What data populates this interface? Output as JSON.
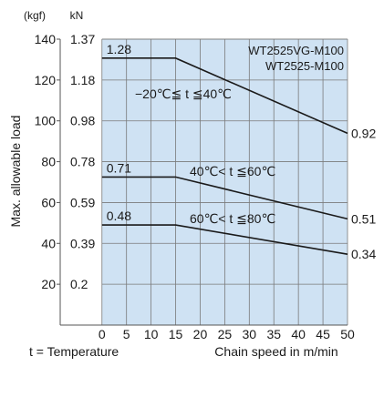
{
  "chart_data": {
    "type": "line",
    "y_axis_label": "Max. allowable load",
    "unit_kgf": "(kgf)",
    "unit_kn": "kN",
    "x_axis_label": "Chain speed in m/min",
    "footnote": "t = Temperature",
    "model_labels": [
      "WT2525VG-M100",
      "WT2525-M100"
    ],
    "x_ticks": [
      0,
      5,
      10,
      15,
      20,
      25,
      30,
      35,
      40,
      45,
      50
    ],
    "y_ticks": [
      {
        "kgf": "140",
        "kn": "1.37",
        "value": 140
      },
      {
        "kgf": "120",
        "kn": "1.18",
        "value": 120
      },
      {
        "kgf": "100",
        "kn": "0.98",
        "value": 100
      },
      {
        "kgf": "80",
        "kn": "0.78",
        "value": 80
      },
      {
        "kgf": "60",
        "kn": "0.59",
        "value": 60
      },
      {
        "kgf": "40",
        "kn": "0.39",
        "value": 40
      },
      {
        "kgf": "20",
        "kn": "0.2",
        "value": 20
      }
    ],
    "xlim": [
      -8.5,
      50
    ],
    "ylim": [
      0,
      140
    ],
    "grid": true,
    "background_color": "#cfe2f3",
    "grid_color": "#7a7a7a",
    "line_color": "#1a1a1a",
    "series": [
      {
        "name": "−20℃≦ t ≦40℃",
        "points": [
          [
            0,
            130.7
          ],
          [
            15,
            130.7
          ],
          [
            50,
            93.9
          ]
        ],
        "start_label": "1.28",
        "end_label": "0.92"
      },
      {
        "name": "40℃< t ≦60℃",
        "points": [
          [
            0,
            72.5
          ],
          [
            15,
            72.5
          ],
          [
            50,
            52.0
          ]
        ],
        "start_label": "0.71",
        "end_label": "0.51"
      },
      {
        "name": "60℃< t ≦80℃",
        "points": [
          [
            0,
            49.0
          ],
          [
            15,
            49.0
          ],
          [
            50,
            34.7
          ]
        ],
        "start_label": "0.48",
        "end_label": "0.34"
      }
    ]
  }
}
